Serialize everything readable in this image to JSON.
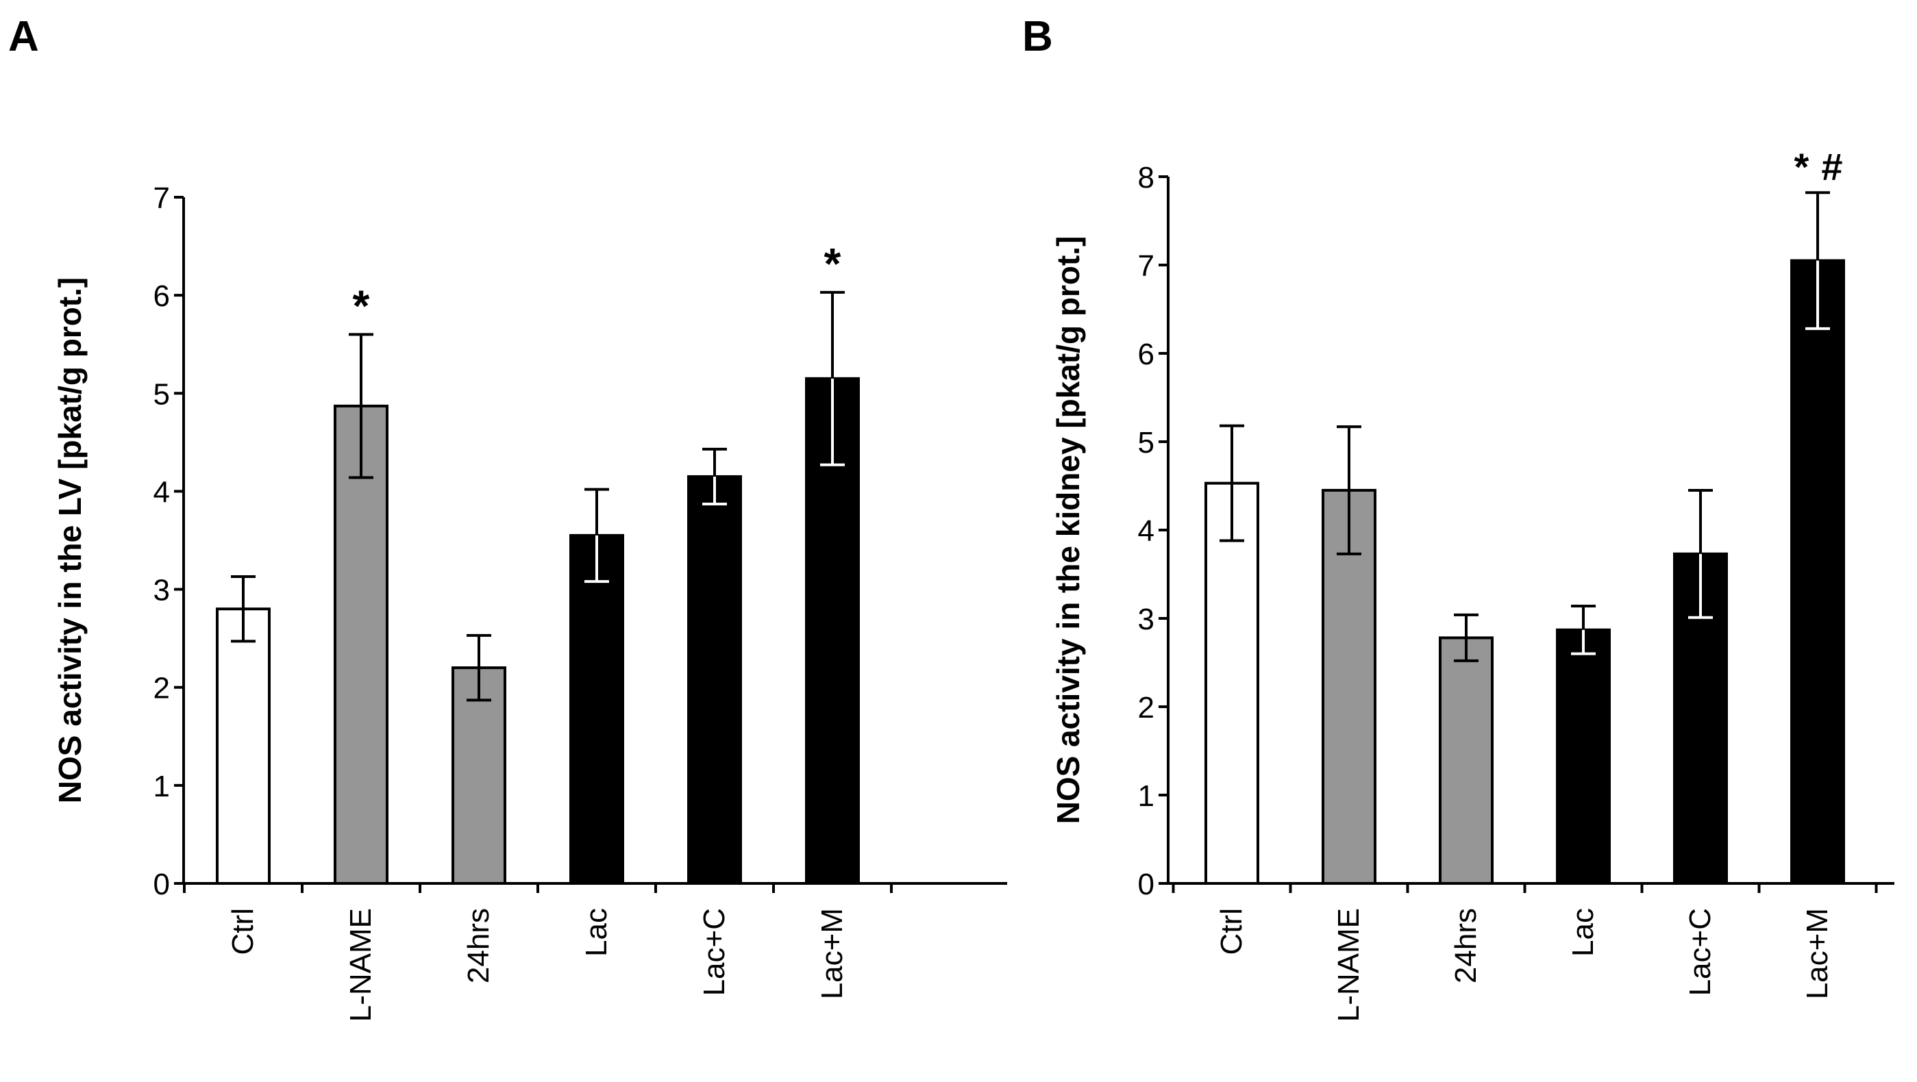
{
  "chart_data": [
    {
      "panel": "A",
      "type": "bar",
      "title": "",
      "xlabel": "",
      "ylabel": "NOS activity in the LV [pkat/g prot.]",
      "ylim": [
        0,
        7
      ],
      "yticks": [
        0,
        1,
        2,
        3,
        4,
        5,
        6,
        7
      ],
      "categories": [
        "Ctrl",
        "L-NAME",
        "24hrs",
        "Lac",
        "Lac+C",
        "Lac+M"
      ],
      "values": [
        2.8,
        4.87,
        2.2,
        3.55,
        4.15,
        5.15
      ],
      "errors": [
        0.33,
        0.73,
        0.33,
        0.47,
        0.28,
        0.88
      ],
      "fills": [
        "#ffffff",
        "#969696",
        "#969696",
        "#000000",
        "#000000",
        "#000000"
      ],
      "annotations": [
        "",
        "*",
        "",
        "",
        "",
        "*"
      ]
    },
    {
      "panel": "B",
      "type": "bar",
      "title": "",
      "xlabel": "",
      "ylabel": "NOS activity in the kidney [pkat/g prot.]",
      "ylim": [
        0,
        8
      ],
      "yticks": [
        0,
        1,
        2,
        3,
        4,
        5,
        6,
        7,
        8
      ],
      "categories": [
        "Ctrl",
        "L-NAME",
        "24hrs",
        "Lac",
        "Lac+C",
        "Lac+M"
      ],
      "values": [
        4.53,
        4.45,
        2.78,
        2.87,
        3.73,
        7.05
      ],
      "errors": [
        0.65,
        0.72,
        0.26,
        0.27,
        0.72,
        0.77
      ],
      "fills": [
        "#ffffff",
        "#969696",
        "#969696",
        "#000000",
        "#000000",
        "#000000"
      ],
      "annotations": [
        "",
        "",
        "",
        "",
        "",
        "*#"
      ]
    }
  ]
}
